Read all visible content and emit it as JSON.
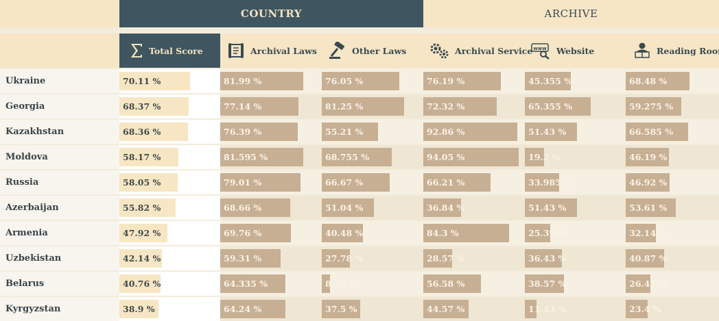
{
  "tabs": {
    "country": "COUNTRY",
    "archive": "ARCHIVE"
  },
  "columns": [
    {
      "key": "total",
      "label": "Total Score",
      "icon": "sigma-icon"
    },
    {
      "key": "archival_laws",
      "label": "Archival Laws",
      "icon": "scroll-icon"
    },
    {
      "key": "other_laws",
      "label": "Other Laws",
      "icon": "gavel-icon"
    },
    {
      "key": "archival_service",
      "label": "Archival Service",
      "icon": "gears-icon"
    },
    {
      "key": "website",
      "label": "Website",
      "icon": "www-icon"
    },
    {
      "key": "reading_room",
      "label": "Reading Room",
      "icon": "reader-icon"
    }
  ],
  "rows": [
    {
      "country": "Ukraine",
      "values": [
        "70.11 %",
        "81.99 %",
        "76.05 %",
        "76.19 %",
        "45.355 %",
        "68.48 %"
      ],
      "fill": [
        70.11,
        81.99,
        76.05,
        76.19,
        45.355,
        68.48
      ]
    },
    {
      "country": "Georgia",
      "values": [
        "68.37 %",
        "77.14 %",
        "81.25 %",
        "72.32 %",
        "65.355 %",
        "59.275 %"
      ],
      "fill": [
        68.37,
        77.14,
        81.25,
        72.32,
        65.355,
        59.275
      ]
    },
    {
      "country": "Kazakhstan",
      "values": [
        "68.36 %",
        "76.39 %",
        "55.21 %",
        "92.86 %",
        "51.43 %",
        "66.585 %"
      ],
      "fill": [
        68.36,
        76.39,
        55.21,
        92.86,
        51.43,
        66.585
      ]
    },
    {
      "country": "Moldova",
      "values": [
        "58.17 %",
        "81.595 %",
        "68.755 %",
        "94.05 %",
        "19.2 %",
        "46.19 %"
      ],
      "fill": [
        58.17,
        81.595,
        68.755,
        94.05,
        19.2,
        46.19
      ]
    },
    {
      "country": "Russia",
      "values": [
        "58.05 %",
        "79.01 %",
        "66.67 %",
        "66.21 %",
        "33.985 %",
        "46.92 %"
      ],
      "fill": [
        58.05,
        79.01,
        66.67,
        66.21,
        33.985,
        46.92
      ]
    },
    {
      "country": "Azerbaijan",
      "values": [
        "55.82 %",
        "68.66 %",
        "51.04 %",
        "36.84 %",
        "51.43 %",
        "53.61 %"
      ],
      "fill": [
        55.82,
        68.66,
        51.04,
        36.84,
        51.43,
        53.61
      ]
    },
    {
      "country": "Armenia",
      "values": [
        "47.92 %",
        "69.76 %",
        "40.48 %",
        "84.3 %",
        "25.39 %",
        "32.14 %"
      ],
      "fill": [
        47.92,
        69.76,
        40.48,
        84.3,
        25.39,
        32.14
      ]
    },
    {
      "country": "Uzbekistan",
      "values": [
        "42.14 %",
        "59.31 %",
        "27.78 %",
        "28.57 %",
        "36.43 %",
        "40.87 %"
      ],
      "fill": [
        42.14,
        59.31,
        27.78,
        28.57,
        36.43,
        40.87
      ]
    },
    {
      "country": "Belarus",
      "values": [
        "40.76 %",
        "64.335 %",
        "8.33 %",
        "56.58 %",
        "38.57 %",
        "26.43 %"
      ],
      "fill": [
        40.76,
        64.335,
        8.33,
        56.58,
        38.57,
        26.43
      ]
    },
    {
      "country": "Kyrgyzstan",
      "values": [
        "38.9 %",
        "64.24 %",
        "37.5 %",
        "44.57 %",
        "11.43 %",
        "23.4 %"
      ],
      "fill": [
        38.9,
        64.24,
        37.5,
        44.57,
        11.43,
        23.4
      ]
    }
  ],
  "colors": {
    "accent": "#3f5660",
    "bar": "#c7af94",
    "total_bar": "#f7e6c3",
    "header_bg": "#f6e6c6"
  }
}
